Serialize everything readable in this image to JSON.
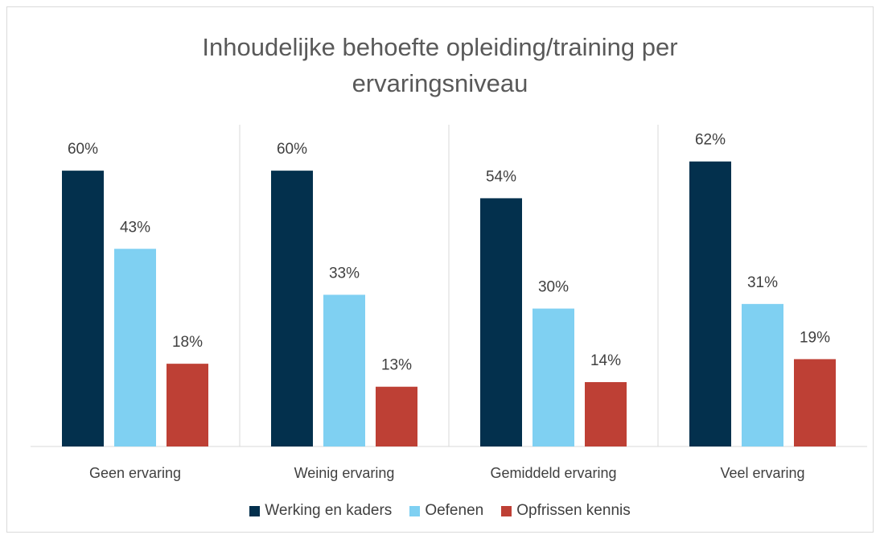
{
  "chart_data": {
    "type": "bar",
    "title": "Inhoudelijke behoefte opleiding/training per ervaringsniveau",
    "categories": [
      "Geen ervaring",
      "Weinig ervaring",
      "Gemiddeld ervaring",
      "Veel ervaring"
    ],
    "series": [
      {
        "name": "Werking en kaders",
        "color": "#03304d",
        "values": [
          60,
          60,
          54,
          62
        ],
        "value_labels": [
          "60%",
          "60%",
          "54%",
          "62%"
        ]
      },
      {
        "name": "Oefenen",
        "color": "#7fd0f2",
        "values": [
          43,
          33,
          30,
          31
        ],
        "value_labels": [
          "43%",
          "33%",
          "30%",
          "31%"
        ]
      },
      {
        "name": "Opfrissen kennis",
        "color": "#be4035",
        "values": [
          18,
          13,
          14,
          19
        ],
        "value_labels": [
          "18%",
          "13%",
          "14%",
          "19%"
        ]
      }
    ],
    "ylim": [
      0,
      70
    ],
    "legend": "bottom"
  }
}
